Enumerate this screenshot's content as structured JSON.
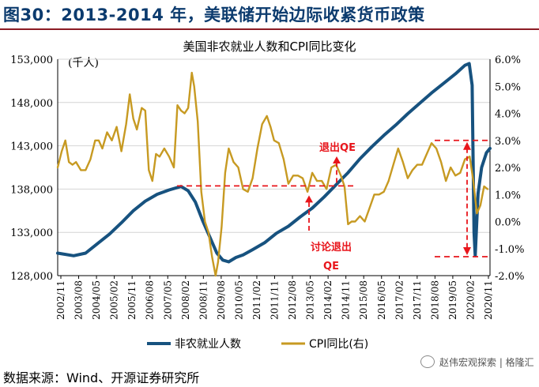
{
  "header": {
    "title": "图30：2013-2014 年，美联储开始边际收紧货币政策"
  },
  "footer": {
    "source": "数据来源：Wind、开源证券研究所"
  },
  "watermark": {
    "text": "赵伟宏观探索 | 格隆汇"
  },
  "chart_data": {
    "type": "line",
    "title": "美国非农就业人数和CPI同比变化",
    "unit_left": "(千人)",
    "left_axis": {
      "min": 128000,
      "max": 153000,
      "ticks": [
        128000,
        133000,
        138000,
        143000,
        148000,
        153000
      ],
      "tick_labels": [
        "128,000",
        "133,000",
        "138,000",
        "143,000",
        "148,000",
        "153,000"
      ]
    },
    "right_axis": {
      "min": -2.0,
      "max": 6.0,
      "ticks": [
        -2,
        -1,
        0,
        1,
        2,
        3,
        4,
        5,
        6
      ],
      "tick_labels": [
        "-2.0%",
        "-1.0%",
        "0.0%",
        "1.0%",
        "2.0%",
        "3.0%",
        "4.0%",
        "5.0%",
        "6.0%"
      ]
    },
    "x_ticks": [
      "2002/11",
      "2003/08",
      "2004/05",
      "2005/02",
      "2005/11",
      "2006/08",
      "2007/05",
      "2008/02",
      "2008/11",
      "2009/08",
      "2010/05",
      "2011/02",
      "2011/11",
      "2012/08",
      "2013/05",
      "2014/02",
      "2014/11",
      "2015/08",
      "2016/05",
      "2017/02",
      "2017/11",
      "2018/08",
      "2019/05",
      "2020/02",
      "2020/11"
    ],
    "grid": "horizontal",
    "legend_position": "bottom",
    "series": [
      {
        "name": "非农就业人数",
        "axis": "left",
        "color": "#17527f",
        "x": [
          2002.83,
          2003.5,
          2004.0,
          2004.5,
          2005.0,
          2005.5,
          2006.0,
          2006.5,
          2007.0,
          2007.5,
          2008.0,
          2008.3,
          2008.6,
          2008.9,
          2009.2,
          2009.5,
          2009.75,
          2010.0,
          2010.3,
          2010.6,
          2011.0,
          2011.5,
          2012.0,
          2012.5,
          2013.0,
          2013.5,
          2014.0,
          2014.5,
          2015.0,
          2015.5,
          2016.0,
          2016.5,
          2017.0,
          2017.5,
          2018.0,
          2018.5,
          2019.0,
          2019.5,
          2019.9,
          2020.08,
          2020.2,
          2020.28,
          2020.33,
          2020.45,
          2020.6,
          2020.8,
          2020.95
        ],
        "values": [
          130600,
          130300,
          130600,
          131700,
          132800,
          134100,
          135500,
          136600,
          137400,
          137900,
          138300,
          137800,
          136500,
          134400,
          132500,
          130600,
          129800,
          129600,
          130100,
          130400,
          131000,
          131800,
          132900,
          133700,
          134800,
          135800,
          137100,
          138500,
          139900,
          141500,
          142900,
          144200,
          145400,
          146700,
          147900,
          149100,
          150200,
          151300,
          152300,
          152500,
          150000,
          133000,
          130300,
          137500,
          140500,
          142200,
          142700
        ]
      },
      {
        "name": "CPI同比(右)",
        "axis": "right",
        "color": "#c79a22",
        "x": [
          2002.83,
          2003.0,
          2003.15,
          2003.3,
          2003.45,
          2003.6,
          2003.8,
          2004.0,
          2004.2,
          2004.4,
          2004.55,
          2004.7,
          2004.9,
          2005.1,
          2005.3,
          2005.5,
          2005.7,
          2005.85,
          2006.0,
          2006.15,
          2006.35,
          2006.5,
          2006.65,
          2006.8,
          2006.95,
          2007.1,
          2007.3,
          2007.5,
          2007.7,
          2007.85,
          2008.0,
          2008.15,
          2008.3,
          2008.45,
          2008.55,
          2008.7,
          2008.85,
          2009.0,
          2009.15,
          2009.3,
          2009.45,
          2009.55,
          2009.7,
          2009.85,
          2010.0,
          2010.2,
          2010.4,
          2010.6,
          2010.8,
          2011.0,
          2011.2,
          2011.4,
          2011.6,
          2011.75,
          2011.9,
          2012.1,
          2012.3,
          2012.5,
          2012.7,
          2012.9,
          2013.1,
          2013.3,
          2013.5,
          2013.7,
          2013.9,
          2014.1,
          2014.3,
          2014.5,
          2014.7,
          2014.85,
          2015.0,
          2015.15,
          2015.3,
          2015.5,
          2015.7,
          2015.9,
          2016.1,
          2016.3,
          2016.5,
          2016.7,
          2016.9,
          2017.1,
          2017.3,
          2017.5,
          2017.7,
          2017.9,
          2018.1,
          2018.3,
          2018.5,
          2018.7,
          2018.9,
          2019.1,
          2019.3,
          2019.5,
          2019.7,
          2019.9,
          2020.1,
          2020.25,
          2020.4,
          2020.55,
          2020.7,
          2020.85
        ],
        "values": [
          2.0,
          2.6,
          3.0,
          2.2,
          2.1,
          2.2,
          1.9,
          1.9,
          2.3,
          3.0,
          3.0,
          2.7,
          3.3,
          3.0,
          3.5,
          2.6,
          3.6,
          4.7,
          3.8,
          3.4,
          4.2,
          4.1,
          1.9,
          1.5,
          2.5,
          2.4,
          2.7,
          2.4,
          2.0,
          4.3,
          4.1,
          4.0,
          4.2,
          5.5,
          5.0,
          3.7,
          1.1,
          0.0,
          -0.4,
          -1.3,
          -2.0,
          -1.5,
          -0.2,
          1.8,
          2.7,
          2.2,
          2.0,
          1.2,
          1.1,
          1.6,
          2.7,
          3.6,
          3.9,
          3.5,
          3.0,
          2.9,
          2.3,
          1.4,
          1.7,
          1.7,
          1.6,
          1.1,
          1.8,
          1.5,
          1.5,
          1.2,
          2.0,
          2.1,
          1.7,
          1.3,
          -0.1,
          0.0,
          0.0,
          0.2,
          0.0,
          0.5,
          1.0,
          1.0,
          1.1,
          1.5,
          2.1,
          2.7,
          2.2,
          1.6,
          1.9,
          2.1,
          2.1,
          2.5,
          2.9,
          2.7,
          2.2,
          1.5,
          2.0,
          1.7,
          1.8,
          2.3,
          2.4,
          1.5,
          0.3,
          0.6,
          1.3,
          1.2
        ]
      }
    ],
    "annotations": [
      {
        "text": "退出QE",
        "x": 2014.0,
        "y_right": 2.8
      },
      {
        "text": "讨论退出",
        "x": 2013.5,
        "y_right": -0.9
      },
      {
        "text": "QE",
        "x": 2013.5,
        "y_right": -1.6
      }
    ]
  }
}
